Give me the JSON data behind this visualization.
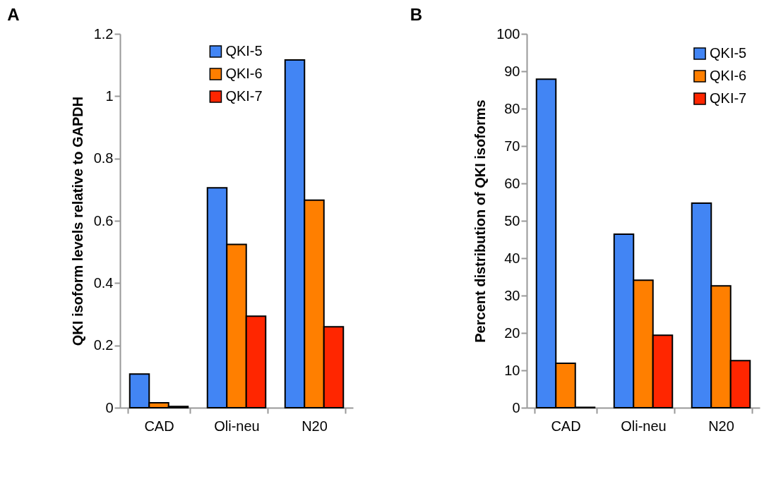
{
  "chart_data": [
    {
      "type": "bar",
      "title": "A",
      "ylabel": "QKI isoform levels relative to GAPDH",
      "categories": [
        "CAD",
        "Oli-neu",
        "N20"
      ],
      "ylim": [
        0,
        1.2
      ],
      "yticks": [
        0,
        0.2,
        0.4,
        0.6,
        0.8,
        1,
        1.2
      ],
      "grid": false,
      "legend": "top",
      "series": [
        {
          "name": "QKI-5",
          "color": "#4285f4",
          "values": [
            0.108,
            0.706,
            1.116
          ]
        },
        {
          "name": "QKI-6",
          "color": "#ff7f00",
          "values": [
            0.016,
            0.524,
            0.666
          ]
        },
        {
          "name": "QKI-7",
          "color": "#ff2600",
          "values": [
            0.004,
            0.294,
            0.26
          ]
        }
      ]
    },
    {
      "type": "bar",
      "title": "B",
      "ylabel": "Percent distribution of QKI isoforms",
      "categories": [
        "CAD",
        "Oli-neu",
        "N20"
      ],
      "ylim": [
        0,
        100
      ],
      "yticks": [
        0,
        10,
        20,
        30,
        40,
        50,
        60,
        70,
        80,
        90,
        100
      ],
      "grid": false,
      "legend": "top right",
      "series": [
        {
          "name": "QKI-5",
          "color": "#4285f4",
          "values": [
            87.9,
            46.4,
            54.7
          ]
        },
        {
          "name": "QKI-6",
          "color": "#ff7f00",
          "values": [
            11.9,
            34.1,
            32.6
          ]
        },
        {
          "name": "QKI-7",
          "color": "#ff2600",
          "values": [
            0.1,
            19.4,
            12.6
          ]
        }
      ]
    }
  ]
}
